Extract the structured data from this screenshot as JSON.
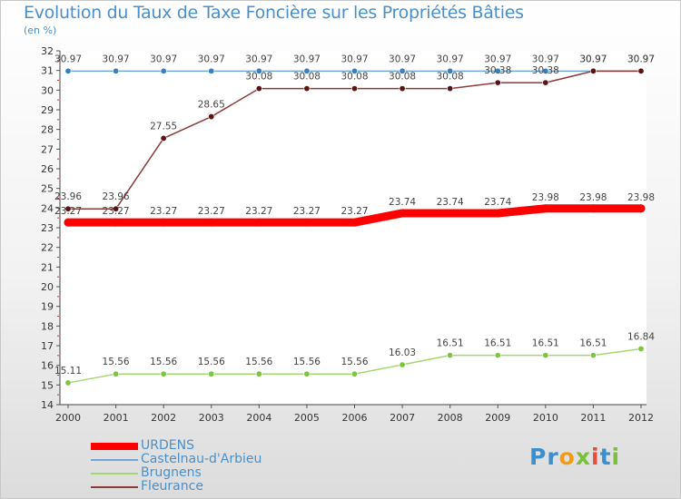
{
  "header": {
    "title": "Evolution du Taux de Taxe Foncière sur les Propriétés Bâties",
    "unit": "(en %)"
  },
  "logo": {
    "text": "Proxiti",
    "letters": [
      {
        "ch": "P",
        "color": "#3a8fd0"
      },
      {
        "ch": "r",
        "color": "#3a8fd0"
      },
      {
        "ch": "o",
        "color": "#f39c12"
      },
      {
        "ch": "x",
        "color": "#7cbf3a"
      },
      {
        "ch": "i",
        "color": "#e74c3c"
      },
      {
        "ch": "t",
        "color": "#3a8fd0"
      },
      {
        "ch": "i",
        "color": "#7cbf3a"
      }
    ]
  },
  "chart_data": {
    "type": "line",
    "title": "Evolution du Taux de Taxe Foncière sur les Propriétés Bâties",
    "ylabel": "(en %)",
    "xlabel": "",
    "ylim": [
      14,
      32
    ],
    "yticks": [
      "14",
      "15",
      "16",
      "17",
      "18",
      "19",
      "20",
      "21",
      "22",
      "23",
      "24",
      "25",
      "26",
      "27",
      "28",
      "29",
      "30",
      "31",
      "32"
    ],
    "categories": [
      "2000",
      "2001",
      "2002",
      "2003",
      "2004",
      "2005",
      "2006",
      "2007",
      "2008",
      "2009",
      "2010",
      "2011",
      "2012"
    ],
    "series": [
      {
        "name": "URDENS",
        "color": "#ff0000",
        "values": [
          23.27,
          23.27,
          23.27,
          23.27,
          23.27,
          23.27,
          23.27,
          23.74,
          23.74,
          23.74,
          23.98,
          23.98,
          23.98
        ],
        "labels": [
          "23.27",
          "23.27",
          "23.27",
          "23.27",
          "23.27",
          "23.27",
          "23.27",
          "23.74",
          "23.74",
          "23.74",
          "23.98",
          "23.98",
          "23.98"
        ]
      },
      {
        "name": "Castelnau-d'Arbieu",
        "color": "#6fa6d6",
        "values": [
          30.97,
          30.97,
          30.97,
          30.97,
          30.97,
          30.97,
          30.97,
          30.97,
          30.97,
          30.97,
          30.97,
          30.97,
          30.97
        ],
        "labels": [
          "30.97",
          "30.97",
          "30.97",
          "30.97",
          "30.97",
          "30.97",
          "30.97",
          "30.97",
          "30.97",
          "30.97",
          "30.97",
          "30.97",
          "30.97"
        ]
      },
      {
        "name": "Brugnens",
        "color": "#a4d86e",
        "values": [
          15.11,
          15.56,
          15.56,
          15.56,
          15.56,
          15.56,
          15.56,
          16.03,
          16.51,
          16.51,
          16.51,
          16.51,
          16.84
        ],
        "labels": [
          "15.11",
          "15.56",
          "15.56",
          "15.56",
          "15.56",
          "15.56",
          "15.56",
          "16.03",
          "16.51",
          "16.51",
          "16.51",
          "16.51",
          "16.84"
        ]
      },
      {
        "name": "Fleurance",
        "color": "#8b3a3a",
        "values": [
          23.96,
          23.96,
          27.55,
          28.65,
          30.08,
          30.08,
          30.08,
          30.08,
          30.08,
          30.38,
          30.38,
          30.97,
          30.97
        ],
        "labels": [
          "23.96",
          "23.96",
          "27.55",
          "28.65",
          "30.08",
          "30.08",
          "30.08",
          "30.08",
          "30.08",
          "30.38",
          "30.38",
          "30.97",
          "30.97"
        ]
      }
    ],
    "legend_position": "bottom-left"
  }
}
